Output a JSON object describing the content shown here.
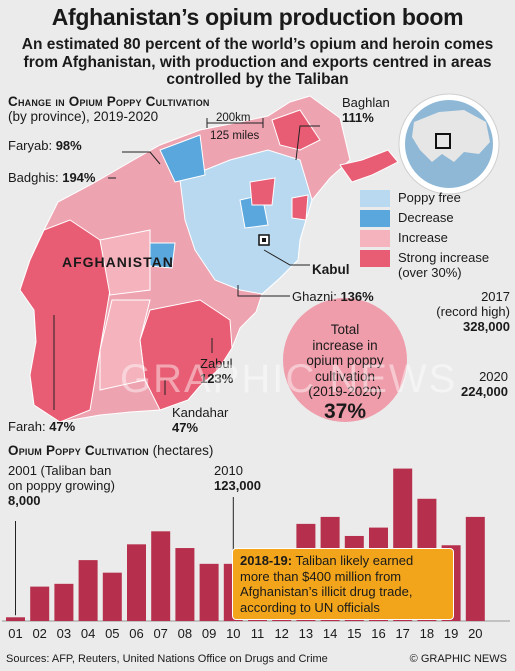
{
  "title": "Afghanistan’s opium production boom",
  "subtitle": "An estimated 80 percent of the world’s opium and heroin comes from Afghanistan, with production and exports centred in areas controlled by the Taliban",
  "map": {
    "heading_sc": "Change in Opium Poppy Cultivation",
    "heading_rest": "(by province), 2019-2020",
    "country_label": "AFGHANISTAN",
    "capital": "Kabul",
    "scale_km": "200km",
    "scale_mi": "125 miles",
    "provinces": [
      {
        "name": "Faryab:",
        "value": "98%"
      },
      {
        "name": "Badghis:",
        "value": "194%"
      },
      {
        "name": "Baghlan",
        "value": "111%"
      },
      {
        "name": "Ghazni:",
        "value": "136%"
      },
      {
        "name": "Zabul",
        "value": "123%"
      },
      {
        "name": "Kandahar",
        "value": "47%"
      },
      {
        "name": "Farah:",
        "value": "47%"
      }
    ],
    "legend": [
      {
        "label": "Poppy free",
        "color": "#b9d9f1"
      },
      {
        "label": "Decrease",
        "color": "#5aa7dd"
      },
      {
        "label": "Increase",
        "color": "#f4b3bd"
      },
      {
        "label": "Strong increase",
        "label2": "(over 30%)",
        "color": "#e85d74"
      }
    ],
    "total_line1": "Total",
    "total_line2": "increase in",
    "total_line3": "opium poppy",
    "total_line4": "cultivation",
    "total_line5": "(2019-2020)",
    "total_value": "37%"
  },
  "chart_data": {
    "type": "bar",
    "title": "Opium Poppy Cultivation",
    "title_rest": "(hectares)",
    "categories": [
      "01",
      "02",
      "03",
      "04",
      "05",
      "06",
      "07",
      "08",
      "09",
      "10",
      "11",
      "12",
      "13",
      "14",
      "15",
      "16",
      "17",
      "18",
      "19",
      "20"
    ],
    "values": [
      8000,
      74000,
      80000,
      131000,
      104000,
      165000,
      193000,
      157000,
      123000,
      123000,
      131000,
      154000,
      209000,
      224000,
      183000,
      201000,
      328000,
      263000,
      163000,
      224000
    ],
    "ylim": [
      0,
      340000
    ],
    "bar_color": "#b6304d",
    "annotations": [
      {
        "year": "01",
        "line1": "2001 (Taliban ban",
        "line2": "on poppy growing)",
        "value": "8,000"
      },
      {
        "year": "10",
        "line1": "2010",
        "value": "123,000"
      },
      {
        "year": "17",
        "line1": "2017",
        "line2": "(record high)",
        "value": "328,000"
      },
      {
        "year": "20",
        "line1": "2020",
        "value": "224,000"
      }
    ]
  },
  "callout": {
    "lead": "2018-19:",
    "text": "Taliban likely earned more than $400 million from Afghanistan’s illicit drug trade, according to UN officials"
  },
  "watermark": "GRAPHIC NEWS",
  "sources": "Sources: AFP, Reuters, United Nations Office on Drugs and Crime",
  "credit": "© GRAPHIC NEWS"
}
